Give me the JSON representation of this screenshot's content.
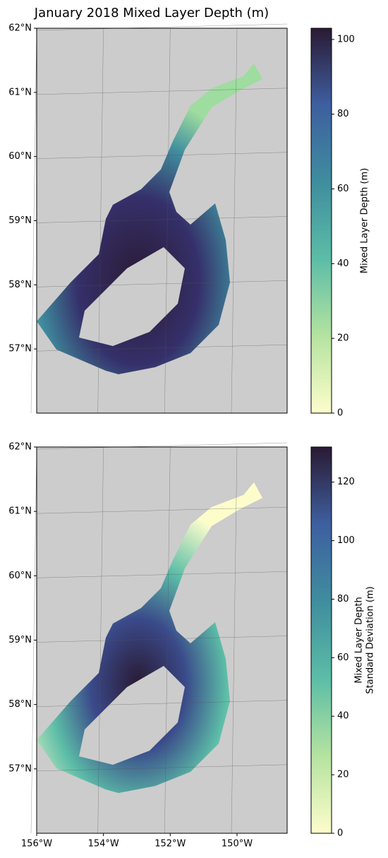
{
  "title": "January 2018 Mixed Layer Depth (m)",
  "panels": [
    {
      "lat_lim": [
        56,
        62
      ],
      "lon_lim": [
        -156,
        -148.5
      ],
      "lat_ticks": [
        {
          "value": 62,
          "label": "62°N"
        },
        {
          "value": 61,
          "label": "61°N"
        },
        {
          "value": 60,
          "label": "60°N"
        },
        {
          "value": 59,
          "label": "59°N"
        },
        {
          "value": 58,
          "label": "58°N"
        },
        {
          "value": 57,
          "label": "57°N"
        }
      ],
      "lon_ticks": [
        {
          "value": -156,
          "label": "156°W"
        },
        {
          "value": -154,
          "label": "154°W"
        },
        {
          "value": -152,
          "label": "152°W"
        },
        {
          "value": -150,
          "label": "150°W"
        }
      ],
      "show_lon_labels": false,
      "colorbar": {
        "label_lines": [
          "Mixed Layer Depth (m)"
        ],
        "lim": [
          0,
          103
        ],
        "ticks": [
          0,
          20,
          40,
          60,
          80,
          100
        ]
      }
    },
    {
      "lat_lim": [
        56,
        62
      ],
      "lon_lim": [
        -156,
        -148.5
      ],
      "lat_ticks": [
        {
          "value": 62,
          "label": "62°N"
        },
        {
          "value": 61,
          "label": "61°N"
        },
        {
          "value": 60,
          "label": "60°N"
        },
        {
          "value": 59,
          "label": "59°N"
        },
        {
          "value": 58,
          "label": "58°N"
        },
        {
          "value": 57,
          "label": "57°N"
        }
      ],
      "lon_ticks": [
        {
          "value": -156,
          "label": "156°W"
        },
        {
          "value": -154,
          "label": "154°W"
        },
        {
          "value": -152,
          "label": "152°W"
        },
        {
          "value": -150,
          "label": "150°W"
        }
      ],
      "show_lon_labels": true,
      "colorbar": {
        "label_lines": [
          "Mixed Layer Depth",
          "Standard Deviation (m)"
        ],
        "lim": [
          0,
          132
        ],
        "ticks": [
          0,
          20,
          40,
          60,
          80,
          100,
          120
        ]
      }
    }
  ]
}
